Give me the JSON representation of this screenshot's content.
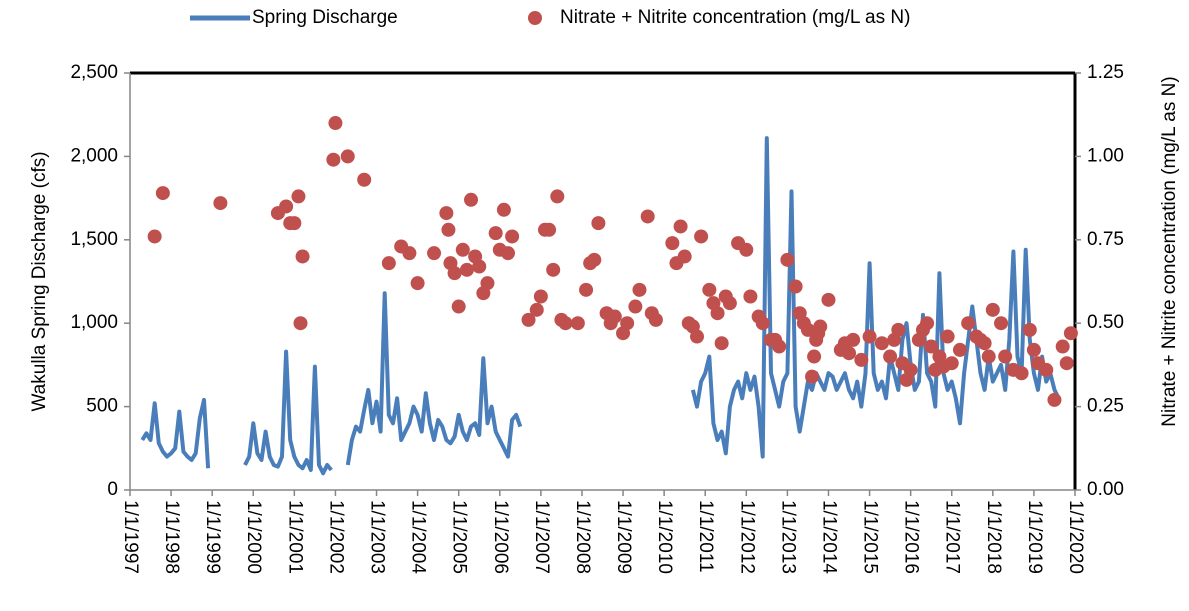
{
  "chart_data": {
    "type": "line",
    "xlim": [
      1997,
      2020
    ],
    "xticks": [
      {
        "value": 1997,
        "label": "1/1/1997"
      },
      {
        "value": 1998,
        "label": "1/1/1998"
      },
      {
        "value": 1999,
        "label": "1/1/1999"
      },
      {
        "value": 2000,
        "label": "1/1/2000"
      },
      {
        "value": 2001,
        "label": "1/1/2001"
      },
      {
        "value": 2002,
        "label": "1/1/2002"
      },
      {
        "value": 2003,
        "label": "1/1/2003"
      },
      {
        "value": 2004,
        "label": "1/1/2004"
      },
      {
        "value": 2005,
        "label": "1/1/2005"
      },
      {
        "value": 2006,
        "label": "1/1/2006"
      },
      {
        "value": 2007,
        "label": "1/1/2007"
      },
      {
        "value": 2008,
        "label": "1/1/2008"
      },
      {
        "value": 2009,
        "label": "1/1/2009"
      },
      {
        "value": 2010,
        "label": "1/1/2010"
      },
      {
        "value": 2011,
        "label": "1/1/2011"
      },
      {
        "value": 2012,
        "label": "1/1/2012"
      },
      {
        "value": 2013,
        "label": "1/1/2013"
      },
      {
        "value": 2014,
        "label": "1/1/2014"
      },
      {
        "value": 2015,
        "label": "1/1/2015"
      },
      {
        "value": 2016,
        "label": "1/1/2016"
      },
      {
        "value": 2017,
        "label": "1/1/2017"
      },
      {
        "value": 2018,
        "label": "1/1/2018"
      },
      {
        "value": 2019,
        "label": "1/1/2019"
      },
      {
        "value": 2020,
        "label": "1/1/2020"
      }
    ],
    "ylabel": "Wakulla Spring Discharge (cfs)",
    "ylim": [
      0,
      2500
    ],
    "yticks": [
      0,
      500,
      {
        "value": 1000,
        "label": "1,000"
      },
      {
        "value": 1500,
        "label": "1,500"
      },
      {
        "value": 2000,
        "label": "2,000"
      },
      {
        "value": 2500,
        "label": "2,500"
      }
    ],
    "y2label": "Nitrate + Nitrite concentration (mg/L as N)",
    "y2lim": [
      0,
      1.25
    ],
    "y2ticks": [
      {
        "value": 0,
        "label": "0.00"
      },
      0.25,
      {
        "value": 0.5,
        "label": "0.50"
      },
      0.75,
      {
        "value": 1,
        "label": "1.00"
      },
      1.25
    ],
    "legend": "top",
    "series": [
      {
        "name": "Spring Discharge",
        "type": "line",
        "color": "#4a7ebb",
        "x": [
          1997.3,
          1997.4,
          1997.5,
          1997.6,
          1997.7,
          1997.8,
          1997.9,
          1998.0,
          1998.1,
          1998.2,
          1998.3,
          1998.4,
          1998.5,
          1998.6,
          1998.7,
          1998.8,
          1998.9,
          1999.3,
          1999.8,
          1999.9,
          2000.0,
          2000.1,
          2000.2,
          2000.3,
          2000.4,
          2000.5,
          2000.6,
          2000.7,
          2000.8,
          2000.9,
          2001.0,
          2001.1,
          2001.2,
          2001.3,
          2001.4,
          2001.5,
          2001.6,
          2001.7,
          2001.8,
          2001.9,
          2002.1,
          2002.3,
          2002.4,
          2002.5,
          2002.6,
          2002.7,
          2002.8,
          2002.9,
          2003.0,
          2003.1,
          2003.2,
          2003.3,
          2003.4,
          2003.5,
          2003.6,
          2003.7,
          2003.8,
          2003.9,
          2004.0,
          2004.1,
          2004.2,
          2004.3,
          2004.4,
          2004.5,
          2004.6,
          2004.7,
          2004.8,
          2004.9,
          2005.0,
          2005.1,
          2005.2,
          2005.3,
          2005.4,
          2005.5,
          2005.6,
          2005.7,
          2005.8,
          2005.9,
          2006.0,
          2006.1,
          2006.2,
          2006.3,
          2006.4,
          2006.5,
          2008.0,
          2010.7,
          2010.8,
          2010.9,
          2011.0,
          2011.1,
          2011.2,
          2011.3,
          2011.4,
          2011.5,
          2011.6,
          2011.7,
          2011.8,
          2011.9,
          2012.0,
          2012.1,
          2012.2,
          2012.3,
          2012.4,
          2012.5,
          2012.6,
          2012.7,
          2012.8,
          2012.9,
          2013.0,
          2013.1,
          2013.2,
          2013.3,
          2013.4,
          2013.5,
          2013.6,
          2013.7,
          2013.8,
          2013.9,
          2014.0,
          2014.1,
          2014.2,
          2014.3,
          2014.4,
          2014.5,
          2014.6,
          2014.7,
          2014.8,
          2014.9,
          2015.0,
          2015.1,
          2015.2,
          2015.3,
          2015.4,
          2015.5,
          2015.6,
          2015.7,
          2015.8,
          2015.9,
          2016.0,
          2016.1,
          2016.2,
          2016.3,
          2016.4,
          2016.5,
          2016.6,
          2016.7,
          2016.8,
          2016.9,
          2017.0,
          2017.1,
          2017.2,
          2017.3,
          2017.4,
          2017.5,
          2017.6,
          2017.7,
          2017.8,
          2017.9,
          2018.0,
          2018.1,
          2018.2,
          2018.3,
          2018.4,
          2018.5,
          2018.6,
          2018.7,
          2018.8,
          2018.9,
          2019.0,
          2019.1,
          2019.2,
          2019.3,
          2019.4,
          2019.5,
          2019.6
        ],
        "values": [
          300,
          340,
          300,
          520,
          280,
          230,
          200,
          220,
          250,
          470,
          230,
          200,
          180,
          220,
          430,
          540,
          130,
          null,
          150,
          200,
          400,
          220,
          180,
          350,
          200,
          150,
          140,
          200,
          830,
          300,
          200,
          150,
          130,
          180,
          120,
          740,
          150,
          100,
          150,
          120,
          null,
          150,
          300,
          380,
          350,
          480,
          600,
          400,
          530,
          350,
          1180,
          450,
          400,
          550,
          300,
          350,
          400,
          500,
          450,
          350,
          580,
          400,
          300,
          420,
          380,
          300,
          280,
          320,
          450,
          350,
          300,
          380,
          400,
          330,
          790,
          400,
          500,
          350,
          300,
          250,
          200,
          420,
          450,
          380,
          null,
          600,
          500,
          650,
          700,
          800,
          400,
          300,
          350,
          220,
          500,
          600,
          650,
          550,
          700,
          600,
          680,
          500,
          200,
          2110,
          700,
          600,
          500,
          650,
          700,
          1790,
          500,
          350,
          500,
          650,
          600,
          700,
          650,
          600,
          700,
          680,
          600,
          650,
          700,
          600,
          550,
          650,
          500,
          700,
          1360,
          700,
          600,
          650,
          550,
          800,
          700,
          600,
          900,
          1000,
          750,
          600,
          650,
          1050,
          700,
          650,
          500,
          1300,
          700,
          600,
          650,
          550,
          400,
          700,
          900,
          1100,
          900,
          700,
          600,
          800,
          650,
          700,
          750,
          600,
          900,
          1430,
          800,
          700,
          1440,
          900,
          700,
          600,
          800,
          650,
          700,
          600,
          550
        ]
      },
      {
        "name": "Nitrate + Nitrite concentration (mg/L as N)",
        "type": "scatter",
        "axis": "y2",
        "color": "#c0504d",
        "x": [
          1997.6,
          1997.8,
          1999.2,
          2000.6,
          2000.8,
          2000.9,
          2001.0,
          2001.1,
          2001.2,
          2001.15,
          2001.95,
          2002.0,
          2002.3,
          2002.7,
          2003.3,
          2003.6,
          2003.8,
          2004.0,
          2004.4,
          2004.7,
          2004.75,
          2004.8,
          2004.9,
          2005.0,
          2005.1,
          2005.2,
          2005.3,
          2005.4,
          2005.5,
          2005.6,
          2005.7,
          2005.9,
          2006.0,
          2006.1,
          2006.2,
          2006.3,
          2006.7,
          2006.9,
          2007.0,
          2007.1,
          2007.2,
          2007.3,
          2007.4,
          2007.5,
          2007.6,
          2007.9,
          2008.1,
          2008.2,
          2008.3,
          2008.4,
          2008.6,
          2008.7,
          2008.8,
          2009.0,
          2009.1,
          2009.3,
          2009.4,
          2009.6,
          2009.7,
          2009.8,
          2010.2,
          2010.3,
          2010.4,
          2010.5,
          2010.6,
          2010.7,
          2010.8,
          2010.9,
          2011.1,
          2011.2,
          2011.3,
          2011.4,
          2011.5,
          2011.6,
          2011.8,
          2012.0,
          2012.1,
          2012.3,
          2012.4,
          2012.6,
          2012.7,
          2012.8,
          2013.0,
          2013.2,
          2013.3,
          2013.4,
          2013.5,
          2013.6,
          2013.65,
          2013.7,
          2013.75,
          2013.8,
          2014.0,
          2014.3,
          2014.4,
          2014.5,
          2014.6,
          2014.8,
          2015.0,
          2015.3,
          2015.5,
          2015.6,
          2015.7,
          2015.8,
          2015.9,
          2016.0,
          2016.2,
          2016.3,
          2016.4,
          2016.5,
          2016.6,
          2016.7,
          2016.8,
          2016.9,
          2017.0,
          2017.2,
          2017.4,
          2017.6,
          2017.7,
          2017.8,
          2017.9,
          2018.0,
          2018.2,
          2018.3,
          2018.5,
          2018.7,
          2018.9,
          2019.0,
          2019.1,
          2019.3,
          2019.5,
          2019.7,
          2019.8,
          2019.9
        ],
        "values": [
          0.76,
          0.89,
          0.86,
          0.83,
          0.85,
          0.8,
          0.8,
          0.88,
          0.7,
          0.5,
          0.99,
          1.1,
          1.0,
          0.93,
          0.68,
          0.73,
          0.71,
          0.62,
          0.71,
          0.83,
          0.78,
          0.68,
          0.65,
          0.55,
          0.72,
          0.66,
          0.87,
          0.7,
          0.67,
          0.59,
          0.62,
          0.77,
          0.72,
          0.84,
          0.71,
          0.76,
          0.51,
          0.54,
          0.58,
          0.78,
          0.78,
          0.66,
          0.88,
          0.51,
          0.5,
          0.5,
          0.6,
          0.68,
          0.69,
          0.8,
          0.53,
          0.5,
          0.52,
          0.47,
          0.5,
          0.55,
          0.6,
          0.82,
          0.53,
          0.51,
          0.74,
          0.68,
          0.79,
          0.7,
          0.5,
          0.49,
          0.46,
          0.76,
          0.6,
          0.56,
          0.53,
          0.44,
          0.58,
          0.56,
          0.74,
          0.72,
          0.58,
          0.52,
          0.5,
          0.45,
          0.45,
          0.43,
          0.69,
          0.61,
          0.53,
          0.5,
          0.48,
          0.34,
          0.4,
          0.45,
          0.47,
          0.49,
          0.57,
          0.42,
          0.44,
          0.41,
          0.45,
          0.39,
          0.46,
          0.44,
          0.4,
          0.45,
          0.48,
          0.38,
          0.33,
          0.36,
          0.45,
          0.48,
          0.5,
          0.43,
          0.36,
          0.4,
          0.37,
          0.46,
          0.38,
          0.42,
          0.5,
          0.46,
          0.45,
          0.44,
          0.4,
          0.54,
          0.5,
          0.4,
          0.36,
          0.35,
          0.48,
          0.42,
          0.38,
          0.36,
          0.27,
          0.43,
          0.38,
          0.47
        ]
      }
    ]
  }
}
